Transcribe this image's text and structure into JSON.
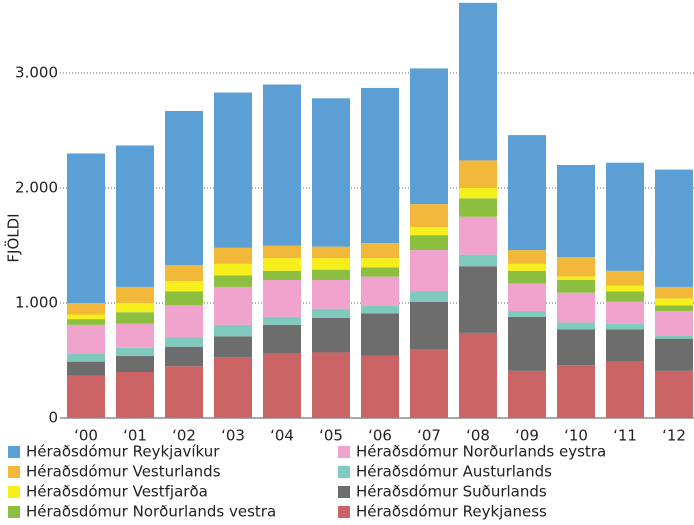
{
  "chart_data": {
    "type": "stacked_bar",
    "y_label": "FJÖLDI",
    "categories": [
      "‘00",
      "‘01",
      "‘02",
      "‘03",
      "‘04",
      "‘05",
      "‘06",
      "‘07",
      "‘08",
      "‘09",
      "‘10",
      "‘11",
      "‘12"
    ],
    "series": [
      {
        "name": "Héraðsdómur Reykjavíkur",
        "color": "#5b9fd4",
        "values": [
          1300,
          1230,
          1340,
          1350,
          1400,
          1290,
          1350,
          1180,
          1370,
          1000,
          800,
          940,
          1020
        ]
      },
      {
        "name": "Héraðsdómur Vesturlands",
        "color": "#f2b83a",
        "values": [
          100,
          140,
          140,
          140,
          110,
          100,
          130,
          200,
          240,
          120,
          170,
          130,
          100
        ]
      },
      {
        "name": "Héraðsdómur Vestfjarða",
        "color": "#f7ef1c",
        "values": [
          40,
          80,
          90,
          100,
          110,
          100,
          80,
          70,
          90,
          60,
          30,
          50,
          60
        ]
      },
      {
        "name": "Héraðsdómur Norðurlands vestra",
        "color": "#8cbf3f",
        "values": [
          50,
          100,
          120,
          100,
          80,
          90,
          80,
          130,
          160,
          110,
          110,
          90,
          50
        ]
      },
      {
        "name": "Héraðsdómur Norðurlands eystra",
        "color": "#f0a3cc",
        "values": [
          250,
          210,
          280,
          330,
          320,
          250,
          250,
          360,
          330,
          240,
          260,
          190,
          210
        ]
      },
      {
        "name": "Héraðsdómur Austurlands",
        "color": "#7fc9bd",
        "values": [
          70,
          70,
          80,
          100,
          70,
          80,
          70,
          90,
          100,
          50,
          60,
          50,
          30
        ]
      },
      {
        "name": "Héraðsdómur Suðurlands",
        "color": "#6d6d6d",
        "values": [
          120,
          140,
          170,
          180,
          250,
          300,
          370,
          410,
          580,
          470,
          310,
          280,
          280
        ]
      },
      {
        "name": "Héraðsdómur Reykjaness",
        "color": "#cb6565",
        "values": [
          370,
          400,
          450,
          530,
          560,
          570,
          540,
          600,
          740,
          410,
          460,
          490,
          410
        ]
      }
    ],
    "ylim": [
      0,
      3600
    ],
    "yticks": [
      0,
      {
        "value": 1000,
        "label": "1.000"
      },
      {
        "value": 2000,
        "label": "2.000"
      },
      {
        "value": 3000,
        "label": "3.000"
      }
    ],
    "grid": true
  }
}
